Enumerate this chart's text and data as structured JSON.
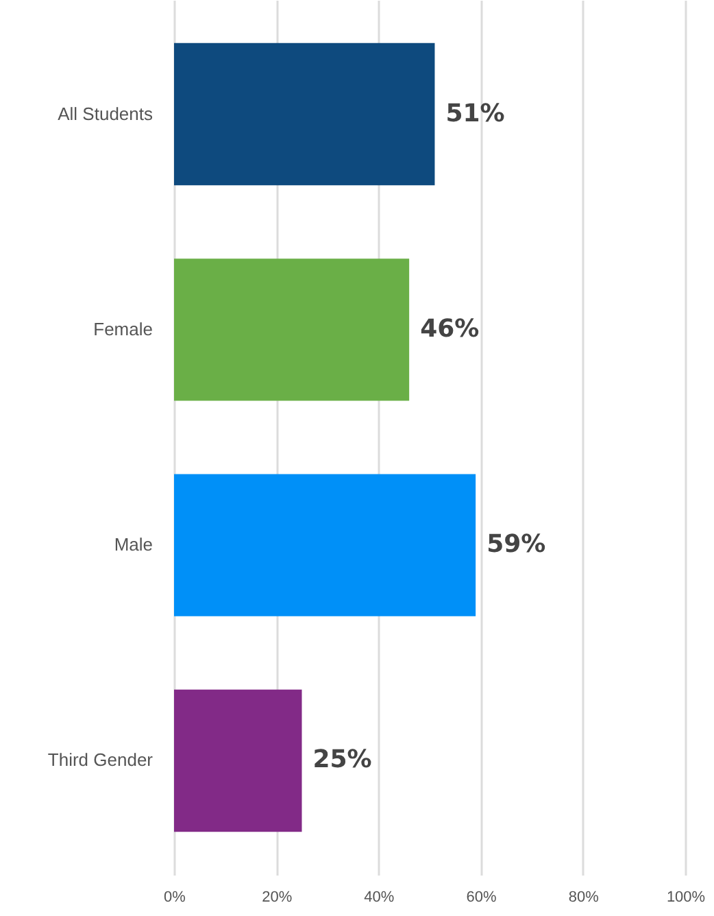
{
  "chart_data": {
    "type": "bar",
    "orientation": "horizontal",
    "categories": [
      "All Students",
      "Female",
      "Male",
      "Third Gender"
    ],
    "values": [
      51,
      46,
      59,
      25
    ],
    "colors": [
      "#0e4a7e",
      "#6aaf47",
      "#0090f8",
      "#822a87"
    ],
    "value_labels": [
      "51%",
      "46%",
      "59%",
      "25%"
    ],
    "xlim": [
      0,
      100
    ],
    "xticks": [
      {
        "value": 0,
        "label": "0%"
      },
      {
        "value": 20,
        "label": "20%"
      },
      {
        "value": 40,
        "label": "40%"
      },
      {
        "value": 60,
        "label": "60%"
      },
      {
        "value": 80,
        "label": "80%"
      },
      {
        "value": 100,
        "label": "100%"
      }
    ],
    "grid": "x"
  }
}
